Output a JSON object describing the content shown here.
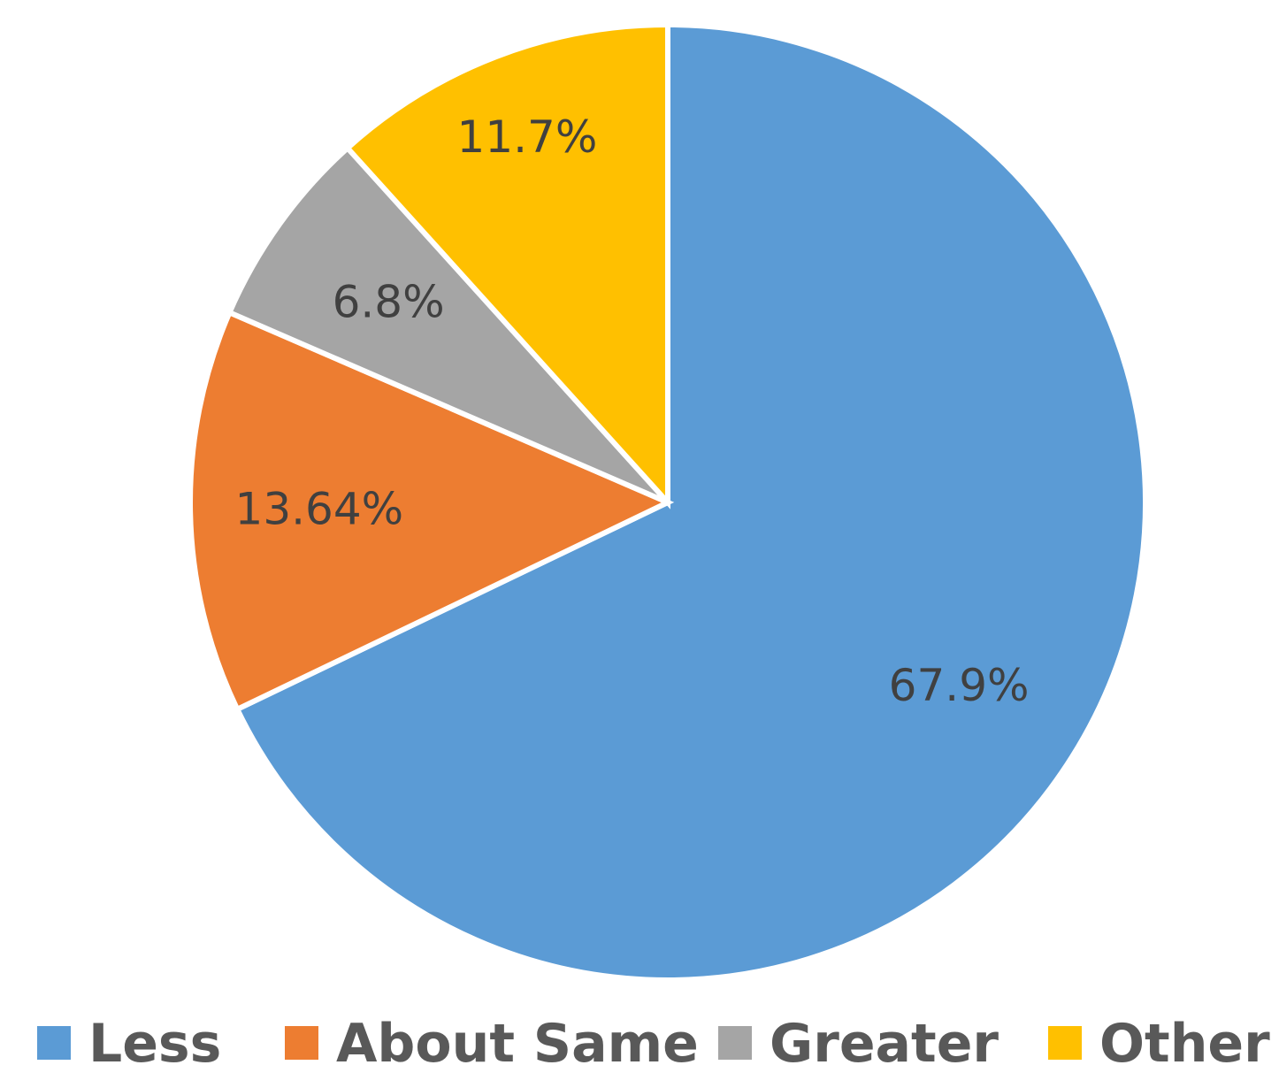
{
  "chart_data": {
    "type": "pie",
    "legend_position": "bottom",
    "slices": [
      {
        "name": "Less",
        "value": 67.9,
        "label": "67.9%",
        "color": "#5B9BD5"
      },
      {
        "name": "About Same",
        "value": 13.64,
        "label": "13.64%",
        "color": "#ED7D31"
      },
      {
        "name": "Greater",
        "value": 6.8,
        "label": "6.8%",
        "color": "#A5A5A5"
      },
      {
        "name": "Other",
        "value": 11.7,
        "label": "11.7%",
        "color": "#FFC000"
      }
    ]
  }
}
